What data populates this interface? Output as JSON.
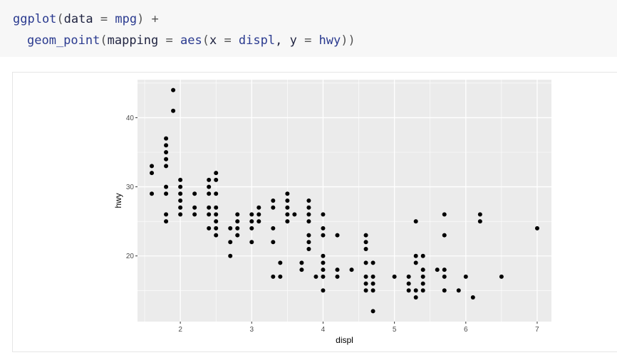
{
  "code": {
    "line1": [
      {
        "t": "ggplot",
        "c": "kw"
      },
      {
        "t": "(",
        "c": "op"
      },
      {
        "t": "data ",
        "c": "nm"
      },
      {
        "t": "=",
        "c": "op"
      },
      {
        "t": " mpg",
        "c": "kw"
      },
      {
        "t": ") +",
        "c": "op"
      }
    ],
    "line2": [
      {
        "t": "geom_point",
        "c": "kw"
      },
      {
        "t": "(",
        "c": "op"
      },
      {
        "t": "mapping ",
        "c": "nm"
      },
      {
        "t": "=",
        "c": "op"
      },
      {
        "t": " aes",
        "c": "kw"
      },
      {
        "t": "(",
        "c": "op"
      },
      {
        "t": "x ",
        "c": "nm"
      },
      {
        "t": "=",
        "c": "op"
      },
      {
        "t": " displ",
        "c": "kw"
      },
      {
        "t": ", y ",
        "c": "nm"
      },
      {
        "t": "=",
        "c": "op"
      },
      {
        "t": " hwy",
        "c": "kw"
      },
      {
        "t": "))",
        "c": "op"
      }
    ]
  },
  "chart_data": {
    "type": "scatter",
    "title": "",
    "xlabel": "displ",
    "ylabel": "hwy",
    "xlim": [
      1.4,
      7.2
    ],
    "ylim": [
      10.5,
      45.5
    ],
    "x_ticks": [
      2,
      3,
      4,
      5,
      6,
      7
    ],
    "y_ticks": [
      20,
      30,
      40
    ],
    "grid": true,
    "panel_background": "#ebebeb",
    "point_color": "#000000",
    "points": [
      [
        1.6,
        33
      ],
      [
        1.6,
        32
      ],
      [
        1.6,
        29
      ],
      [
        1.8,
        37
      ],
      [
        1.8,
        36
      ],
      [
        1.8,
        35
      ],
      [
        1.8,
        34
      ],
      [
        1.8,
        33
      ],
      [
        1.8,
        30
      ],
      [
        1.8,
        29
      ],
      [
        1.8,
        26
      ],
      [
        1.8,
        25
      ],
      [
        1.9,
        44
      ],
      [
        1.9,
        41
      ],
      [
        2.0,
        31
      ],
      [
        2.0,
        30
      ],
      [
        2.0,
        29
      ],
      [
        2.0,
        28
      ],
      [
        2.0,
        27
      ],
      [
        2.0,
        26
      ],
      [
        2.2,
        29
      ],
      [
        2.2,
        27
      ],
      [
        2.2,
        26
      ],
      [
        2.4,
        31
      ],
      [
        2.4,
        30
      ],
      [
        2.4,
        29
      ],
      [
        2.4,
        27
      ],
      [
        2.4,
        26
      ],
      [
        2.4,
        24
      ],
      [
        2.5,
        32
      ],
      [
        2.5,
        31
      ],
      [
        2.5,
        29
      ],
      [
        2.5,
        27
      ],
      [
        2.5,
        26
      ],
      [
        2.5,
        25
      ],
      [
        2.5,
        24
      ],
      [
        2.5,
        23
      ],
      [
        2.7,
        24
      ],
      [
        2.7,
        22
      ],
      [
        2.7,
        20
      ],
      [
        2.8,
        26
      ],
      [
        2.8,
        25
      ],
      [
        2.8,
        24
      ],
      [
        2.8,
        23
      ],
      [
        3.0,
        26
      ],
      [
        3.0,
        25
      ],
      [
        3.0,
        24
      ],
      [
        3.0,
        22
      ],
      [
        3.1,
        27
      ],
      [
        3.1,
        26
      ],
      [
        3.1,
        25
      ],
      [
        3.3,
        28
      ],
      [
        3.3,
        27
      ],
      [
        3.3,
        24
      ],
      [
        3.3,
        22
      ],
      [
        3.3,
        17
      ],
      [
        3.4,
        19
      ],
      [
        3.4,
        17
      ],
      [
        3.5,
        29
      ],
      [
        3.5,
        28
      ],
      [
        3.5,
        27
      ],
      [
        3.5,
        26
      ],
      [
        3.5,
        25
      ],
      [
        3.6,
        26
      ],
      [
        3.7,
        19
      ],
      [
        3.7,
        18
      ],
      [
        3.8,
        28
      ],
      [
        3.8,
        27
      ],
      [
        3.8,
        26
      ],
      [
        3.8,
        25
      ],
      [
        3.8,
        23
      ],
      [
        3.8,
        22
      ],
      [
        3.8,
        21
      ],
      [
        3.9,
        17
      ],
      [
        4.0,
        26
      ],
      [
        4.0,
        24
      ],
      [
        4.0,
        23
      ],
      [
        4.0,
        20
      ],
      [
        4.0,
        19
      ],
      [
        4.0,
        18
      ],
      [
        4.0,
        17
      ],
      [
        4.0,
        15
      ],
      [
        4.2,
        23
      ],
      [
        4.2,
        18
      ],
      [
        4.2,
        17
      ],
      [
        4.4,
        18
      ],
      [
        4.6,
        23
      ],
      [
        4.6,
        22
      ],
      [
        4.6,
        21
      ],
      [
        4.6,
        19
      ],
      [
        4.6,
        17
      ],
      [
        4.6,
        16
      ],
      [
        4.6,
        15
      ],
      [
        4.7,
        19
      ],
      [
        4.7,
        17
      ],
      [
        4.7,
        16
      ],
      [
        4.7,
        15
      ],
      [
        4.7,
        12
      ],
      [
        5.0,
        17
      ],
      [
        5.2,
        17
      ],
      [
        5.2,
        16
      ],
      [
        5.2,
        15
      ],
      [
        5.3,
        25
      ],
      [
        5.3,
        20
      ],
      [
        5.3,
        19
      ],
      [
        5.3,
        15
      ],
      [
        5.3,
        14
      ],
      [
        5.4,
        20
      ],
      [
        5.4,
        18
      ],
      [
        5.4,
        17
      ],
      [
        5.4,
        16
      ],
      [
        5.4,
        15
      ],
      [
        5.6,
        18
      ],
      [
        5.7,
        26
      ],
      [
        5.7,
        23
      ],
      [
        5.7,
        18
      ],
      [
        5.7,
        17
      ],
      [
        5.7,
        15
      ],
      [
        5.9,
        15
      ],
      [
        6.0,
        17
      ],
      [
        6.1,
        14
      ],
      [
        6.2,
        26
      ],
      [
        6.2,
        25
      ],
      [
        6.5,
        17
      ],
      [
        7.0,
        24
      ]
    ]
  }
}
